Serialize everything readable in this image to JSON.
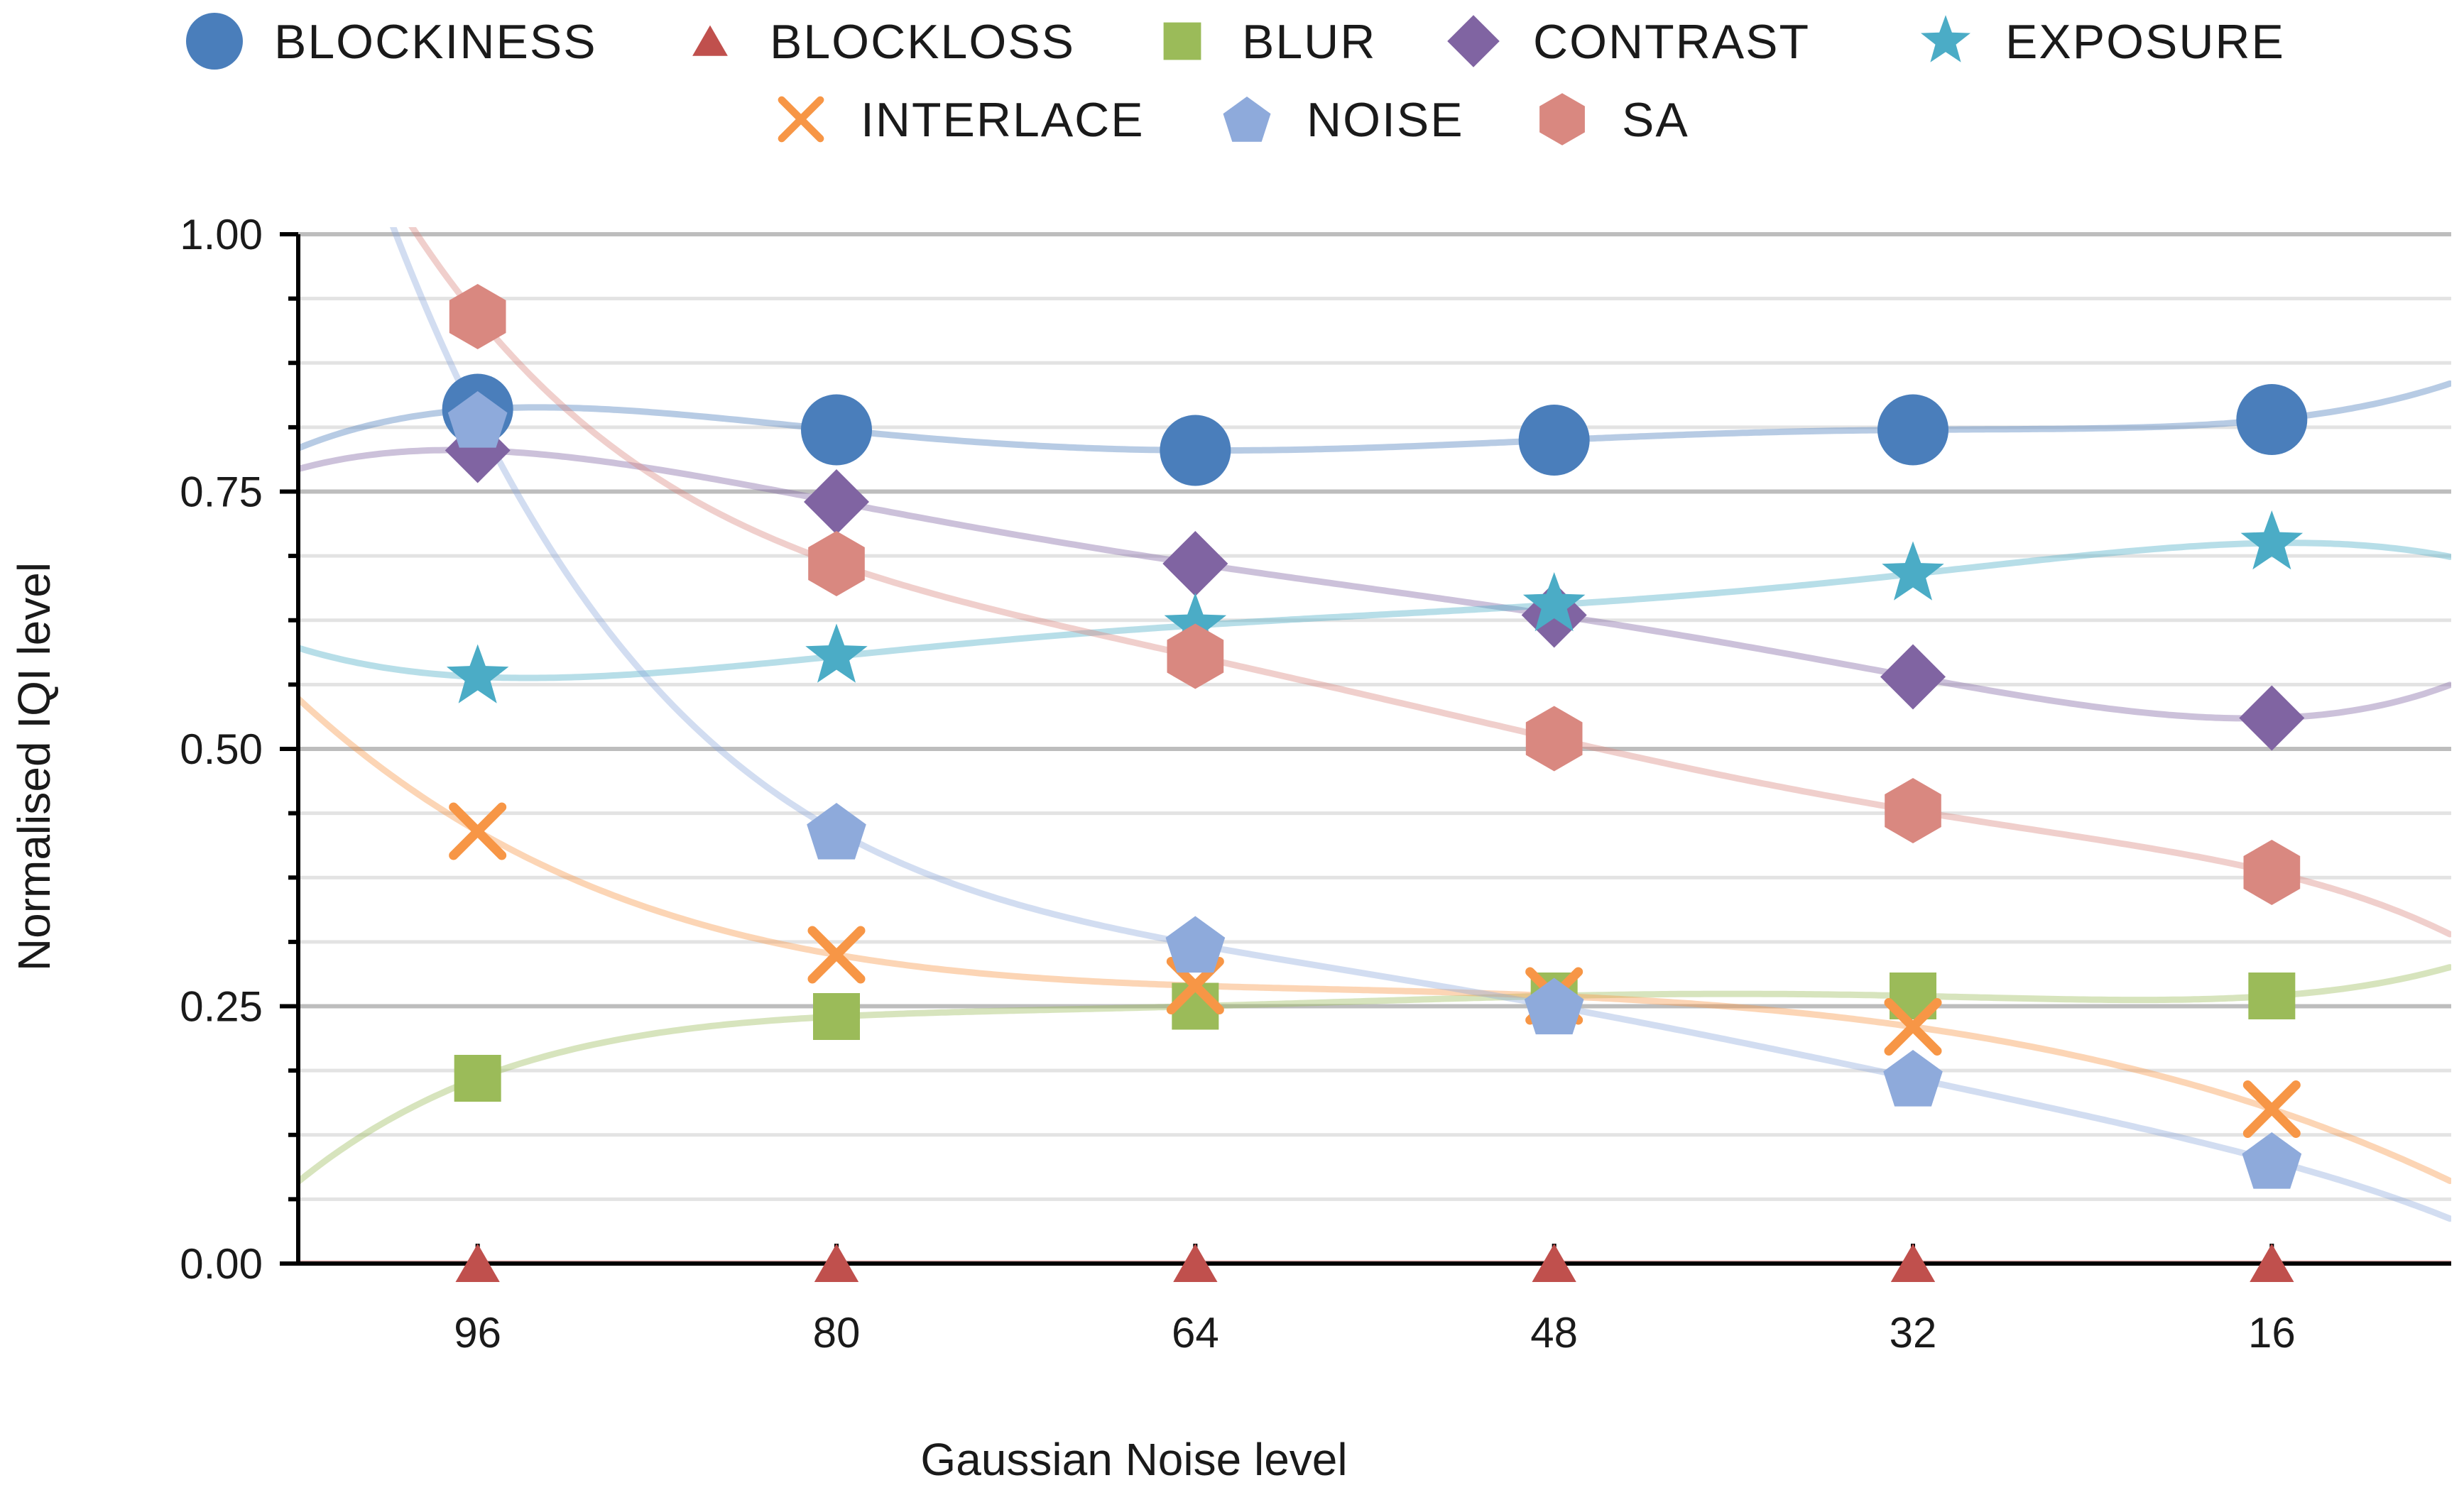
{
  "chart_data": {
    "type": "scatter",
    "title": "",
    "xlabel": "Gaussian Noise level",
    "ylabel": "Normalised IQI level",
    "x": [
      96,
      80,
      64,
      48,
      32,
      16
    ],
    "x_tick_labels": [
      "96",
      "80",
      "64",
      "48",
      "32",
      "16"
    ],
    "xlim": [
      104,
      8
    ],
    "ylim": [
      0,
      1
    ],
    "y_tick_labels": [
      "0.00",
      "0.25",
      "0.50",
      "0.75",
      "1.00"
    ],
    "grid": true,
    "legend_position": "top",
    "trend_lines": true,
    "series": [
      {
        "name": "BLOCKINESS",
        "marker": "circle",
        "color": "#4a7ebb",
        "values": [
          0.83,
          0.81,
          0.79,
          0.8,
          0.81,
          0.82
        ]
      },
      {
        "name": "BLOCKLOSS",
        "marker": "triangle",
        "color": "#c0504d",
        "values": [
          0.0,
          0.0,
          0.0,
          0.0,
          0.0,
          0.0
        ]
      },
      {
        "name": "BLUR",
        "marker": "square",
        "color": "#9bbb59",
        "values": [
          0.18,
          0.24,
          0.25,
          0.26,
          0.26,
          0.26
        ]
      },
      {
        "name": "CONTRAST",
        "marker": "diamond",
        "color": "#8064a2",
        "values": [
          0.79,
          0.74,
          0.68,
          0.63,
          0.57,
          0.53
        ]
      },
      {
        "name": "EXPOSURE",
        "marker": "star",
        "color": "#4bacc6",
        "values": [
          0.57,
          0.59,
          0.62,
          0.64,
          0.67,
          0.7
        ]
      },
      {
        "name": "INTERLACE",
        "marker": "x",
        "color": "#f79646",
        "values": [
          0.42,
          0.3,
          0.27,
          0.26,
          0.23,
          0.15
        ]
      },
      {
        "name": "NOISE",
        "marker": "pentagon",
        "color": "#8eaadb",
        "values": [
          0.82,
          0.42,
          0.31,
          0.25,
          0.18,
          0.1
        ]
      },
      {
        "name": "SA",
        "marker": "hexagon",
        "color": "#d98880",
        "values": [
          0.92,
          0.68,
          0.59,
          0.51,
          0.44,
          0.38
        ]
      }
    ]
  }
}
